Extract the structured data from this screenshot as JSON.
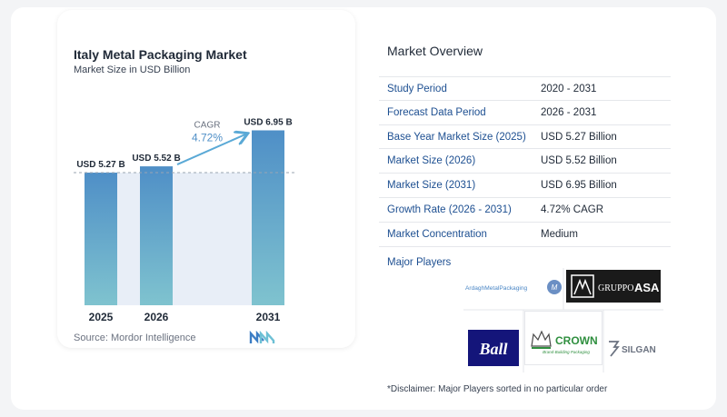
{
  "chart_data": {
    "type": "bar",
    "title": "Italy Metal Packaging Market",
    "subtitle": "Market Size in USD Billion",
    "categories": [
      "2025",
      "2026",
      "2031"
    ],
    "values": [
      5.27,
      5.52,
      6.95
    ],
    "data_labels": [
      "USD 5.27 B",
      "USD 5.52 B",
      "USD 6.95 B"
    ],
    "ylim": [
      0,
      7.5
    ],
    "cagr_label": "CAGR",
    "cagr_value": "4.72%",
    "colors": {
      "bar_top": "#4f8fc7",
      "bar_bottom": "#7fc3cf",
      "band": "#e8eef7",
      "arrow": "#5aa9d6"
    }
  },
  "source": "Source:  Mordor Intelligence",
  "overview": {
    "title": "Market Overview",
    "rows": [
      {
        "label": "Study Period",
        "value": "2020 - 2031"
      },
      {
        "label": "Forecast Data Period",
        "value": "2026 - 2031"
      },
      {
        "label": "Base Year Market Size (2025)",
        "value": "USD 5.27 Billion"
      },
      {
        "label": "Market Size (2026)",
        "value": "USD 5.52 Billion"
      },
      {
        "label": "Market Size (2031)",
        "value": "USD 6.95 Billion"
      },
      {
        "label": "Growth Rate (2026 - 2031)",
        "value": "4.72% CAGR"
      },
      {
        "label": "Market Concentration",
        "value": "Medium"
      }
    ]
  },
  "players": {
    "title": "Major Players",
    "logos": {
      "ardagh": "ArdaghMetalPackaging",
      "gruppo_a": "GRUPPO",
      "gruppo_b": "ASA",
      "ball": "Ball",
      "crown": "CROWN",
      "crown_tag": "Brand-Building Packaging",
      "silgan": "SILGAN"
    }
  },
  "disclaimer": "*Disclaimer: Major Players sorted in no particular order"
}
